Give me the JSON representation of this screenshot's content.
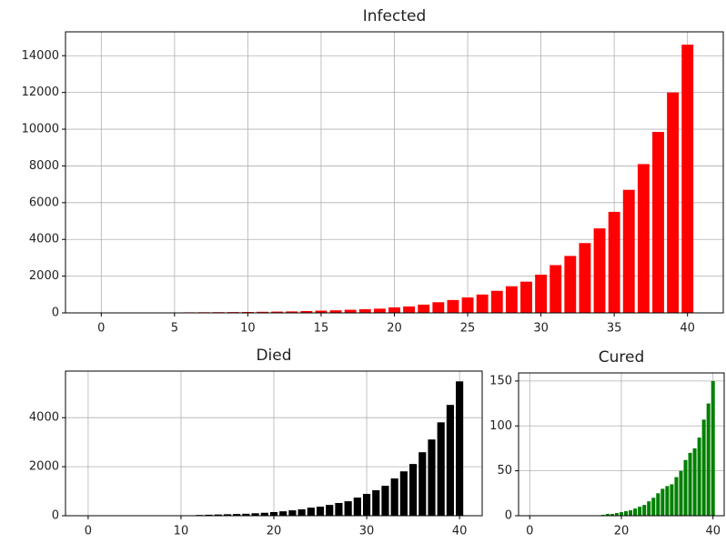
{
  "chart_data": [
    {
      "type": "bar",
      "title": "Infected",
      "x": [
        0,
        1,
        2,
        3,
        4,
        5,
        6,
        7,
        8,
        9,
        10,
        11,
        12,
        13,
        14,
        15,
        16,
        17,
        18,
        19,
        20,
        21,
        22,
        23,
        24,
        25,
        26,
        27,
        28,
        29,
        30,
        31,
        32,
        33,
        34,
        35,
        36,
        37,
        38,
        39,
        40
      ],
      "values": [
        0,
        0,
        0,
        0,
        0,
        0,
        30,
        35,
        40,
        45,
        50,
        60,
        70,
        80,
        100,
        120,
        140,
        170,
        200,
        230,
        300,
        350,
        450,
        580,
        700,
        840,
        1000,
        1200,
        1450,
        1700,
        2080,
        2600,
        3100,
        3800,
        4600,
        5500,
        6700,
        8100,
        9850,
        12000,
        14600
      ],
      "color": "#ff0000",
      "xlim": [
        -2.44,
        42.44
      ],
      "ylim": [
        0,
        15300
      ],
      "xticks": [
        0,
        5,
        10,
        15,
        20,
        25,
        30,
        35,
        40
      ],
      "yticks": [
        0,
        2000,
        4000,
        6000,
        8000,
        10000,
        12000,
        14000
      ],
      "grid": true
    },
    {
      "type": "bar",
      "title": "Died",
      "x": [
        0,
        1,
        2,
        3,
        4,
        5,
        6,
        7,
        8,
        9,
        10,
        11,
        12,
        13,
        14,
        15,
        16,
        17,
        18,
        19,
        20,
        21,
        22,
        23,
        24,
        25,
        26,
        27,
        28,
        29,
        30,
        31,
        32,
        33,
        34,
        35,
        36,
        37,
        38,
        39,
        40
      ],
      "values": [
        0,
        0,
        0,
        0,
        0,
        0,
        0,
        0,
        0,
        0,
        0,
        0,
        30,
        40,
        50,
        60,
        70,
        80,
        100,
        120,
        150,
        180,
        220,
        260,
        330,
        370,
        440,
        520,
        590,
        740,
        890,
        1040,
        1220,
        1520,
        1810,
        2110,
        2590,
        3110,
        3810,
        4520,
        5480
      ],
      "color": "#000000",
      "xlim": [
        -2.44,
        42.44
      ],
      "ylim": [
        0,
        5900
      ],
      "xticks": [
        0,
        10,
        20,
        30,
        40
      ],
      "yticks": [
        0,
        2000,
        4000
      ],
      "grid": true
    },
    {
      "type": "bar",
      "title": "Cured",
      "x": [
        0,
        1,
        2,
        3,
        4,
        5,
        6,
        7,
        8,
        9,
        10,
        11,
        12,
        13,
        14,
        15,
        16,
        17,
        18,
        19,
        20,
        21,
        22,
        23,
        24,
        25,
        26,
        27,
        28,
        29,
        30,
        31,
        32,
        33,
        34,
        35,
        36,
        37,
        38,
        39,
        40
      ],
      "values": [
        0,
        0,
        0,
        0,
        0,
        0,
        0,
        0,
        0,
        0,
        0,
        0,
        0,
        0,
        0,
        0,
        1,
        2,
        2,
        3,
        4,
        5,
        6,
        8,
        10,
        12,
        16,
        20,
        25,
        30,
        33,
        35,
        43,
        50,
        62,
        70,
        75,
        87,
        107,
        125,
        150
      ],
      "color": "#008000",
      "xlim": [
        -2.44,
        42.44
      ],
      "ylim": [
        0,
        159
      ],
      "xticks": [
        0,
        20,
        40
      ],
      "yticks": [
        0,
        50,
        100,
        150
      ],
      "grid": true
    }
  ]
}
